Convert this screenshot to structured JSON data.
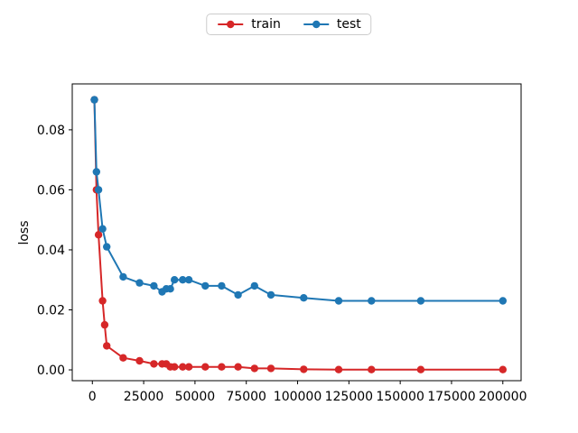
{
  "figure": {
    "background": "#ffffff",
    "text_color": "#000000",
    "spine_color": "#000000"
  },
  "legend": {
    "position": "top-center",
    "items": [
      {
        "label": "train",
        "color": "#d62728"
      },
      {
        "label": "test",
        "color": "#1f77b4"
      }
    ]
  },
  "chart_data": {
    "type": "line",
    "title": "",
    "xlabel": "",
    "ylabel": "loss",
    "xlim": [
      -9800,
      208900
    ],
    "ylim": [
      -0.0036,
      0.0953
    ],
    "x_ticks": [
      0,
      25000,
      50000,
      75000,
      100000,
      125000,
      150000,
      175000,
      200000
    ],
    "x_tick_labels": [
      "0",
      "25000",
      "50000",
      "75000",
      "100000",
      "125000",
      "150000",
      "175000",
      "200000"
    ],
    "y_ticks": [
      0.0,
      0.02,
      0.04,
      0.06,
      0.08
    ],
    "y_tick_labels": [
      "0.00",
      "0.02",
      "0.04",
      "0.06",
      "0.08"
    ],
    "grid": false,
    "legend_position": "above-axes-top-center",
    "series": [
      {
        "name": "train",
        "color": "#d62728",
        "marker": "circle",
        "x": [
          1000,
          2000,
          3000,
          5000,
          6000,
          7000,
          15000,
          23000,
          30000,
          34000,
          36000,
          38000,
          40000,
          44000,
          47000,
          55000,
          63000,
          71000,
          79000,
          87000,
          103000,
          120000,
          136000,
          160000,
          200000
        ],
        "y": [
          0.09,
          0.06,
          0.045,
          0.023,
          0.015,
          0.008,
          0.004,
          0.003,
          0.002,
          0.002,
          0.002,
          0.001,
          0.001,
          0.001,
          0.001,
          0.001,
          0.001,
          0.001,
          0.0005,
          0.0005,
          0.0002,
          0.0001,
          0.0001,
          0.0001,
          0.0001
        ]
      },
      {
        "name": "test",
        "color": "#1f77b4",
        "marker": "circle",
        "x": [
          1000,
          2000,
          3000,
          5000,
          7000,
          15000,
          23000,
          30000,
          34000,
          36000,
          38000,
          40000,
          44000,
          47000,
          55000,
          63000,
          71000,
          79000,
          87000,
          103000,
          120000,
          136000,
          160000,
          200000
        ],
        "y": [
          0.09,
          0.066,
          0.06,
          0.047,
          0.041,
          0.031,
          0.029,
          0.028,
          0.026,
          0.027,
          0.027,
          0.03,
          0.03,
          0.03,
          0.028,
          0.028,
          0.025,
          0.028,
          0.025,
          0.024,
          0.023,
          0.023,
          0.023,
          0.023
        ]
      }
    ]
  }
}
